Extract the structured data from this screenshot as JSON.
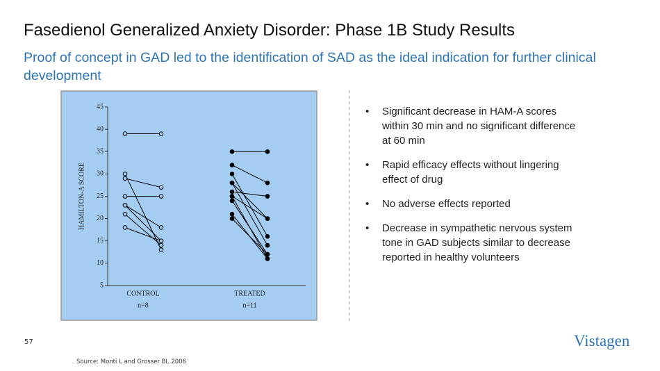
{
  "slide": {
    "title": "Fasedienol Generalized Anxiety Disorder: Phase 1B Study Results",
    "subtitle": "Proof of concept in GAD led to the identification of SAD as the ideal indication for further clinical development",
    "bullets": [
      "Significant decrease in HAM-A scores within 30 min and no significant difference at 60 min",
      "Rapid efficacy effects without lingering effect of drug",
      "No adverse effects reported",
      "Decrease in sympathetic nervous system tone in GAD subjects similar to decrease reported in healthy volunteers"
    ],
    "page_number": "57",
    "logo": "Vistagen",
    "source": "Source: Monti L and Grosser BI, 2006"
  },
  "chart_data": {
    "type": "paired-line",
    "y_label": "HAMILTON-A SCORE",
    "ylim": [
      5,
      45
    ],
    "yticks": [
      5,
      10,
      15,
      20,
      25,
      30,
      35,
      40,
      45
    ],
    "series": [
      {
        "name": "CONTROL",
        "note": "n=8",
        "marker": "open",
        "color": "#000000",
        "before": [
          39,
          30,
          29,
          25,
          23,
          23,
          21,
          18
        ],
        "after": [
          39,
          13,
          27,
          25,
          18,
          15,
          14,
          15
        ]
      },
      {
        "name": "TREATED",
        "note": "n=11",
        "marker": "filled",
        "color": "#000000",
        "before": [
          35,
          32,
          30,
          28,
          28,
          26,
          25,
          25,
          24,
          21,
          20
        ],
        "after": [
          35,
          28,
          16,
          14,
          20,
          25,
          20,
          11,
          12,
          11,
          12
        ]
      }
    ]
  }
}
